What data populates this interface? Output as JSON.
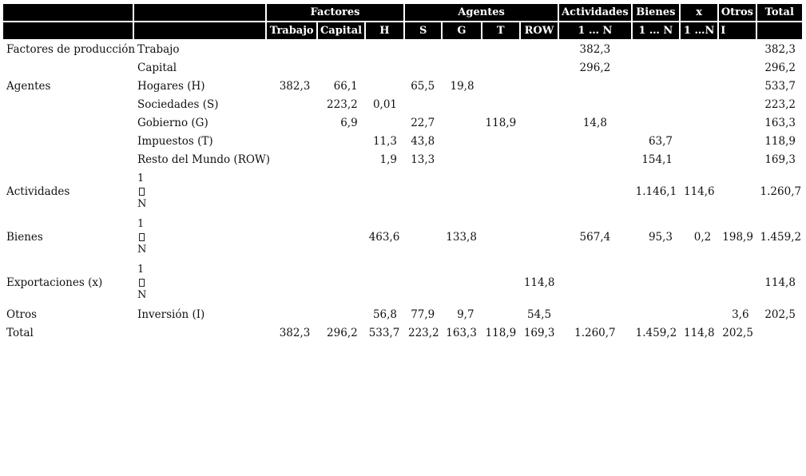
{
  "header1": {
    "factores": "Factores",
    "agentes": "Agentes",
    "actividades": "Actividades",
    "bienes": "Bienes",
    "x": "x",
    "otros": "Otros",
    "total": "Total"
  },
  "header2": {
    "trabajo": "Trabajo",
    "capital": "Capital",
    "h": "H",
    "s": "S",
    "g": "G",
    "t": "T",
    "row": "ROW",
    "actividades_range": "1 … N",
    "bienes_range": "1 … N",
    "x_range": "1 …N",
    "otros_i": "I"
  },
  "rows": [
    {
      "group": "Factores de producción",
      "label": "Trabajo",
      "vals": [
        "",
        "",
        "",
        "",
        "",
        "",
        "",
        "382,3",
        "",
        "",
        "",
        "382,3"
      ]
    },
    {
      "group": "",
      "label": "Capital",
      "vals": [
        "",
        "",
        "",
        "",
        "",
        "",
        "",
        "296,2",
        "",
        "",
        "",
        "296,2"
      ]
    },
    {
      "group": "Agentes",
      "label": "Hogares (H)",
      "vals": [
        "382,3",
        "66,1",
        "",
        "65,5",
        "19,8",
        "",
        "",
        "",
        "",
        "",
        "",
        "533,7"
      ]
    },
    {
      "group": "",
      "label": "Sociedades (S)",
      "vals": [
        "",
        "223,2",
        "0,01",
        "",
        "",
        "",
        "",
        "",
        "",
        "",
        "",
        "223,2"
      ]
    },
    {
      "group": "",
      "label": "Gobierno (G)",
      "vals": [
        "",
        "6,9",
        "",
        "22,7",
        "",
        "118,9",
        "",
        "14,8",
        "",
        "",
        "",
        "163,3"
      ]
    },
    {
      "group": "",
      "label": "Impuestos (T)",
      "vals": [
        "",
        "",
        "11,3",
        "43,8",
        "",
        "",
        "",
        "",
        "63,7",
        "",
        "",
        "118,9"
      ]
    },
    {
      "group": "",
      "label": "Resto del Mundo (ROW)",
      "vals": [
        "",
        "",
        "1,9",
        "13,3",
        "",
        "",
        "",
        "",
        "154,1",
        "",
        "",
        "169,3"
      ]
    },
    {
      "group": "Actividades",
      "stack": [
        "1",
        "N"
      ],
      "vals": [
        "",
        "",
        "",
        "",
        "",
        "",
        "",
        "",
        "1.146,1",
        "114,6",
        "",
        "1.260,7"
      ]
    },
    {
      "group": "Bienes",
      "stack": [
        "1",
        "N"
      ],
      "vals": [
        "",
        "",
        "463,6",
        "",
        "133,8",
        "",
        "",
        "567,4",
        "95,3",
        "0,2",
        "198,9",
        "1.459,2"
      ]
    },
    {
      "group": "Exportaciones (x)",
      "stack": [
        "1",
        "N"
      ],
      "vals": [
        "",
        "",
        "",
        "",
        "",
        "",
        "114,8",
        "",
        "",
        "",
        "",
        "114,8"
      ]
    },
    {
      "group": "Otros",
      "label": "Inversión (I)",
      "vals": [
        "",
        "",
        "56,8",
        "77,9",
        "9,7",
        "",
        "54,5",
        "",
        "",
        "",
        "3,6",
        "202,5"
      ]
    },
    {
      "group": "Total",
      "label": "",
      "vals": [
        "382,3",
        "296,2",
        "533,7",
        "223,2",
        "163,3",
        "118,9",
        "169,3",
        "1.260,7",
        "1.459,2",
        "114,8",
        "202,5",
        ""
      ]
    }
  ]
}
